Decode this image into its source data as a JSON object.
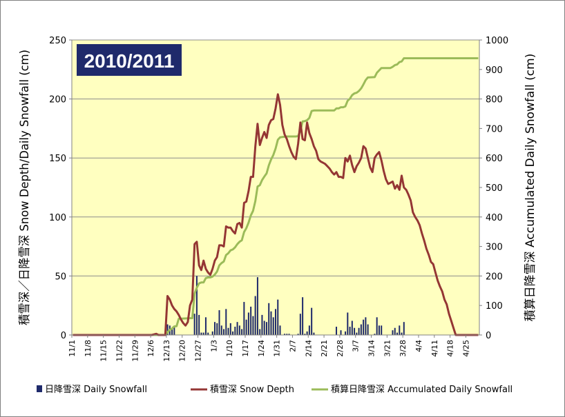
{
  "chart_data": {
    "type": "bar+line",
    "title": "2010/2011",
    "ylabel": "積雪深／日降雪深 Snow Depth/Daily Snowfall (cm)",
    "y2label": "積算日降雪深 Accumulated Daily Snowfall (cm)",
    "ylim": [
      0,
      250
    ],
    "y2lim": [
      0,
      1000
    ],
    "yticks": [
      "0",
      "50",
      "100",
      "150",
      "200",
      "250"
    ],
    "y2ticks": [
      "0",
      "100",
      "200",
      "300",
      "400",
      "500",
      "600",
      "700",
      "800",
      "900",
      "1000"
    ],
    "x_start": "11/1",
    "days": 181,
    "xticks": [
      "11/1",
      "11/8",
      "11/15",
      "11/22",
      "11/29",
      "12/6",
      "12/13",
      "12/20",
      "12/27",
      "1/3",
      "1/10",
      "1/17",
      "1/24",
      "1/31",
      "2/7",
      "2/14",
      "2/21",
      "2/28",
      "3/7",
      "3/14",
      "3/21",
      "3/28",
      "4/4",
      "4/11",
      "4/18",
      "4/25"
    ],
    "grid": "horizontal",
    "legend_position": "bottom",
    "colors": {
      "plot_bg": "#ffffc0",
      "daily": "#1f2a6b",
      "depth": "#943634",
      "accum": "#9bbb59",
      "badge": "#1f2a6b",
      "grid": "#8c8c8c"
    },
    "series": [
      {
        "name": "日降雪深 Daily Snowfall",
        "type": "bar",
        "axis": "left",
        "points": [
          [
            "12/13",
            9
          ],
          [
            "12/14",
            8
          ],
          [
            "12/15",
            5
          ],
          [
            "12/16",
            7
          ],
          [
            "12/25",
            18
          ],
          [
            "12/26",
            50
          ],
          [
            "12/27",
            17
          ],
          [
            "12/28",
            2
          ],
          [
            "12/29",
            2
          ],
          [
            "12/30",
            15
          ],
          [
            "12/31",
            2
          ],
          [
            "1/2",
            3
          ],
          [
            "1/3",
            11
          ],
          [
            "1/4",
            10
          ],
          [
            "1/5",
            21
          ],
          [
            "1/6",
            8
          ],
          [
            "1/7",
            5
          ],
          [
            "1/8",
            22
          ],
          [
            "1/9",
            6
          ],
          [
            "1/10",
            10
          ],
          [
            "1/11",
            3
          ],
          [
            "1/12",
            7
          ],
          [
            "1/13",
            11
          ],
          [
            "1/14",
            8
          ],
          [
            "1/15",
            5
          ],
          [
            "1/16",
            28
          ],
          [
            "1/17",
            13
          ],
          [
            "1/18",
            19
          ],
          [
            "1/19",
            24
          ],
          [
            "1/20",
            16
          ],
          [
            "1/21",
            33
          ],
          [
            "1/22",
            49
          ],
          [
            "1/23",
            5
          ],
          [
            "1/24",
            17
          ],
          [
            "1/25",
            12
          ],
          [
            "1/26",
            11
          ],
          [
            "1/27",
            27
          ],
          [
            "1/28",
            20
          ],
          [
            "1/29",
            15
          ],
          [
            "1/30",
            22
          ],
          [
            "1/31",
            30
          ],
          [
            "2/1",
            8
          ],
          [
            "2/3",
            1
          ],
          [
            "2/4",
            1
          ],
          [
            "2/5",
            1
          ],
          [
            "2/9",
            1
          ],
          [
            "2/10",
            18
          ],
          [
            "2/11",
            32
          ],
          [
            "2/12",
            1
          ],
          [
            "2/13",
            3
          ],
          [
            "2/14",
            8
          ],
          [
            "2/15",
            23
          ],
          [
            "2/16",
            2
          ],
          [
            "2/26",
            7
          ],
          [
            "2/28",
            4
          ],
          [
            "3/2",
            3
          ],
          [
            "3/3",
            19
          ],
          [
            "3/4",
            7
          ],
          [
            "3/5",
            12
          ],
          [
            "3/6",
            6
          ],
          [
            "3/7",
            2
          ],
          [
            "3/8",
            6
          ],
          [
            "3/9",
            9
          ],
          [
            "3/10",
            13
          ],
          [
            "3/11",
            15
          ],
          [
            "3/12",
            9
          ],
          [
            "3/15",
            1
          ],
          [
            "3/16",
            15
          ],
          [
            "3/17",
            8
          ],
          [
            "3/18",
            8
          ],
          [
            "3/23",
            4
          ],
          [
            "3/24",
            6
          ],
          [
            "3/25",
            2
          ],
          [
            "3/26",
            8
          ],
          [
            "3/27",
            2
          ],
          [
            "3/28",
            11
          ]
        ]
      },
      {
        "name": "積雪深 Snow Depth",
        "type": "line",
        "axis": "left",
        "points": [
          [
            "11/1",
            0
          ],
          [
            "12/1",
            0
          ],
          [
            "12/6",
            0
          ],
          [
            "12/8",
            1
          ],
          [
            "12/9",
            0
          ],
          [
            "12/12",
            0
          ],
          [
            "12/13",
            33
          ],
          [
            "12/14",
            30
          ],
          [
            "12/15",
            25
          ],
          [
            "12/16",
            22
          ],
          [
            "12/17",
            20
          ],
          [
            "12/18",
            17
          ],
          [
            "12/19",
            13
          ],
          [
            "12/20",
            10
          ],
          [
            "12/21",
            8
          ],
          [
            "12/22",
            11
          ],
          [
            "12/23",
            25
          ],
          [
            "12/24",
            30
          ],
          [
            "12/25",
            77
          ],
          [
            "12/26",
            79
          ],
          [
            "12/27",
            59
          ],
          [
            "12/28",
            55
          ],
          [
            "12/29",
            63
          ],
          [
            "12/30",
            56
          ],
          [
            "12/31",
            53
          ],
          [
            "1/1",
            51
          ],
          [
            "1/2",
            56
          ],
          [
            "1/3",
            63
          ],
          [
            "1/4",
            66
          ],
          [
            "1/5",
            76
          ],
          [
            "1/6",
            76
          ],
          [
            "1/7",
            75
          ],
          [
            "1/8",
            92
          ],
          [
            "1/9",
            91
          ],
          [
            "1/10",
            91
          ],
          [
            "1/11",
            88
          ],
          [
            "1/12",
            86
          ],
          [
            "1/13",
            94
          ],
          [
            "1/14",
            95
          ],
          [
            "1/15",
            91
          ],
          [
            "1/16",
            112
          ],
          [
            "1/17",
            113
          ],
          [
            "1/18",
            122
          ],
          [
            "1/19",
            134
          ],
          [
            "1/20",
            134
          ],
          [
            "1/21",
            160
          ],
          [
            "1/22",
            179
          ],
          [
            "1/23",
            161
          ],
          [
            "1/24",
            167
          ],
          [
            "1/25",
            172
          ],
          [
            "1/26",
            167
          ],
          [
            "1/27",
            178
          ],
          [
            "1/28",
            182
          ],
          [
            "1/29",
            183
          ],
          [
            "1/30",
            192
          ],
          [
            "1/31",
            204
          ],
          [
            "2/1",
            195
          ],
          [
            "2/2",
            178
          ],
          [
            "2/3",
            170
          ],
          [
            "2/4",
            166
          ],
          [
            "2/5",
            160
          ],
          [
            "2/6",
            155
          ],
          [
            "2/7",
            151
          ],
          [
            "2/8",
            149
          ],
          [
            "2/9",
            162
          ],
          [
            "2/10",
            180
          ],
          [
            "2/11",
            166
          ],
          [
            "2/12",
            165
          ],
          [
            "2/13",
            180
          ],
          [
            "2/14",
            171
          ],
          [
            "2/15",
            166
          ],
          [
            "2/16",
            160
          ],
          [
            "2/17",
            156
          ],
          [
            "2/18",
            149
          ],
          [
            "2/19",
            147
          ],
          [
            "2/20",
            146
          ],
          [
            "2/21",
            145
          ],
          [
            "2/22",
            143
          ],
          [
            "2/23",
            141
          ],
          [
            "2/24",
            138
          ],
          [
            "2/25",
            136
          ],
          [
            "2/26",
            138
          ],
          [
            "2/27",
            134
          ],
          [
            "2/28",
            134
          ],
          [
            "3/1",
            133
          ],
          [
            "3/2",
            150
          ],
          [
            "3/3",
            147
          ],
          [
            "3/4",
            152
          ],
          [
            "3/5",
            144
          ],
          [
            "3/6",
            138
          ],
          [
            "3/7",
            143
          ],
          [
            "3/8",
            146
          ],
          [
            "3/9",
            150
          ],
          [
            "3/10",
            160
          ],
          [
            "3/11",
            158
          ],
          [
            "3/12",
            150
          ],
          [
            "3/13",
            142
          ],
          [
            "3/14",
            138
          ],
          [
            "3/15",
            150
          ],
          [
            "3/16",
            153
          ],
          [
            "3/17",
            155
          ],
          [
            "3/18",
            148
          ],
          [
            "3/19",
            139
          ],
          [
            "3/20",
            132
          ],
          [
            "3/21",
            128
          ],
          [
            "3/22",
            129
          ],
          [
            "3/23",
            130
          ],
          [
            "3/24",
            124
          ],
          [
            "3/25",
            127
          ],
          [
            "3/26",
            123
          ],
          [
            "3/27",
            135
          ],
          [
            "3/28",
            125
          ],
          [
            "3/29",
            123
          ],
          [
            "3/30",
            119
          ],
          [
            "3/31",
            114
          ],
          [
            "4/1",
            104
          ],
          [
            "4/2",
            100
          ],
          [
            "4/3",
            97
          ],
          [
            "4/4",
            93
          ],
          [
            "4/5",
            86
          ],
          [
            "4/6",
            80
          ],
          [
            "4/7",
            73
          ],
          [
            "4/8",
            68
          ],
          [
            "4/9",
            62
          ],
          [
            "4/10",
            60
          ],
          [
            "4/11",
            53
          ],
          [
            "4/12",
            46
          ],
          [
            "4/13",
            41
          ],
          [
            "4/14",
            37
          ],
          [
            "4/15",
            30
          ],
          [
            "4/16",
            26
          ],
          [
            "4/17",
            18
          ],
          [
            "4/18",
            12
          ],
          [
            "4/19",
            6
          ],
          [
            "4/20",
            0
          ],
          [
            "4/30",
            0
          ]
        ]
      },
      {
        "name": "積算日降雪深 Accumulated Daily Snowfall",
        "type": "line",
        "axis": "right",
        "points": [
          [
            "11/1",
            0
          ],
          [
            "12/12",
            0
          ],
          [
            "12/13",
            9
          ],
          [
            "12/14",
            17
          ],
          [
            "12/15",
            22
          ],
          [
            "12/16",
            29
          ],
          [
            "12/17",
            30
          ],
          [
            "12/18",
            55
          ],
          [
            "12/23",
            57
          ],
          [
            "12/24",
            57
          ],
          [
            "12/25",
            140
          ],
          [
            "12/26",
            160
          ],
          [
            "12/27",
            175
          ],
          [
            "12/28",
            178
          ],
          [
            "12/29",
            178
          ],
          [
            "12/30",
            193
          ],
          [
            "12/31",
            195
          ],
          [
            "1/1",
            195
          ],
          [
            "1/2",
            198
          ],
          [
            "1/3",
            205
          ],
          [
            "1/4",
            215
          ],
          [
            "1/5",
            236
          ],
          [
            "1/6",
            244
          ],
          [
            "1/7",
            249
          ],
          [
            "1/8",
            271
          ],
          [
            "1/9",
            277
          ],
          [
            "1/10",
            287
          ],
          [
            "1/11",
            290
          ],
          [
            "1/12",
            297
          ],
          [
            "1/13",
            308
          ],
          [
            "1/14",
            316
          ],
          [
            "1/15",
            321
          ],
          [
            "1/16",
            349
          ],
          [
            "1/17",
            362
          ],
          [
            "1/18",
            381
          ],
          [
            "1/19",
            405
          ],
          [
            "1/20",
            421
          ],
          [
            "1/21",
            454
          ],
          [
            "1/22",
            503
          ],
          [
            "1/23",
            508
          ],
          [
            "1/24",
            525
          ],
          [
            "1/25",
            537
          ],
          [
            "1/26",
            548
          ],
          [
            "1/27",
            575
          ],
          [
            "1/28",
            595
          ],
          [
            "1/29",
            610
          ],
          [
            "1/30",
            632
          ],
          [
            "1/31",
            662
          ],
          [
            "2/1",
            670
          ],
          [
            "2/2",
            671
          ],
          [
            "2/3",
            672
          ],
          [
            "2/4",
            673
          ],
          [
            "2/5",
            673
          ],
          [
            "2/6",
            673
          ],
          [
            "2/7",
            673
          ],
          [
            "2/8",
            673
          ],
          [
            "2/9",
            674
          ],
          [
            "2/10",
            692
          ],
          [
            "2/11",
            724
          ],
          [
            "2/12",
            725
          ],
          [
            "2/13",
            728
          ],
          [
            "2/14",
            736
          ],
          [
            "2/15",
            759
          ],
          [
            "2/16",
            761
          ],
          [
            "2/25",
            761
          ],
          [
            "2/26",
            768
          ],
          [
            "2/27",
            768
          ],
          [
            "2/28",
            772
          ],
          [
            "3/1",
            772
          ],
          [
            "3/2",
            775
          ],
          [
            "3/3",
            794
          ],
          [
            "3/4",
            801
          ],
          [
            "3/5",
            813
          ],
          [
            "3/6",
            819
          ],
          [
            "3/7",
            821
          ],
          [
            "3/8",
            827
          ],
          [
            "3/9",
            836
          ],
          [
            "3/10",
            849
          ],
          [
            "3/11",
            864
          ],
          [
            "3/12",
            873
          ],
          [
            "3/15",
            874
          ],
          [
            "3/16",
            889
          ],
          [
            "3/17",
            897
          ],
          [
            "3/18",
            905
          ],
          [
            "3/22",
            905
          ],
          [
            "3/23",
            909
          ],
          [
            "3/24",
            915
          ],
          [
            "3/25",
            917
          ],
          [
            "3/26",
            925
          ],
          [
            "3/27",
            927
          ],
          [
            "3/28",
            938
          ],
          [
            "4/30",
            938
          ]
        ]
      }
    ]
  }
}
